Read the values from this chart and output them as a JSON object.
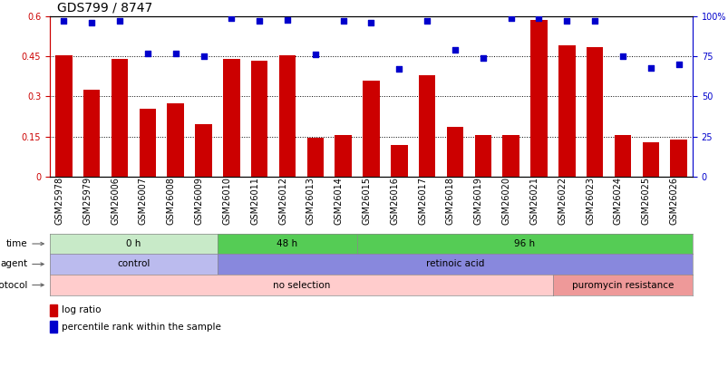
{
  "title": "GDS799 / 8747",
  "samples": [
    "GSM25978",
    "GSM25979",
    "GSM26006",
    "GSM26007",
    "GSM26008",
    "GSM26009",
    "GSM26010",
    "GSM26011",
    "GSM26012",
    "GSM26013",
    "GSM26014",
    "GSM26015",
    "GSM26016",
    "GSM26017",
    "GSM26018",
    "GSM26019",
    "GSM26020",
    "GSM26021",
    "GSM26022",
    "GSM26023",
    "GSM26024",
    "GSM26025",
    "GSM26026"
  ],
  "log_ratio": [
    0.455,
    0.325,
    0.44,
    0.255,
    0.275,
    0.195,
    0.44,
    0.435,
    0.455,
    0.145,
    0.155,
    0.36,
    0.12,
    0.38,
    0.185,
    0.155,
    0.155,
    0.585,
    0.49,
    0.485,
    0.155,
    0.13,
    0.14
  ],
  "percentile": [
    97,
    96,
    97,
    77,
    77,
    75,
    99,
    97,
    98,
    76,
    97,
    96,
    67,
    97,
    79,
    74,
    99,
    99,
    97,
    97,
    75,
    68,
    70
  ],
  "bar_color": "#cc0000",
  "dot_color": "#0000cc",
  "ylim_left": [
    0,
    0.6
  ],
  "ylim_right": [
    0,
    100
  ],
  "yticks_left": [
    0,
    0.15,
    0.3,
    0.45,
    0.6
  ],
  "yticks_left_labels": [
    "0",
    "0.15",
    "0.3",
    "0.45",
    "0.6"
  ],
  "yticks_right": [
    0,
    25,
    50,
    75,
    100
  ],
  "yticks_right_labels": [
    "0",
    "25",
    "50",
    "75",
    "100%"
  ],
  "hlines": [
    0.15,
    0.3,
    0.45
  ],
  "time_groups": [
    {
      "label": "0 h",
      "start": 0,
      "end": 5,
      "color": "#c8eac8"
    },
    {
      "label": "48 h",
      "start": 6,
      "end": 10,
      "color": "#55cc55"
    },
    {
      "label": "96 h",
      "start": 11,
      "end": 22,
      "color": "#55cc55"
    }
  ],
  "agent_groups": [
    {
      "label": "control",
      "start": 0,
      "end": 5,
      "color": "#bbbbee"
    },
    {
      "label": "retinoic acid",
      "start": 6,
      "end": 22,
      "color": "#8888dd"
    }
  ],
  "growth_groups": [
    {
      "label": "no selection",
      "start": 0,
      "end": 17,
      "color": "#ffcccc"
    },
    {
      "label": "puromycin resistance",
      "start": 18,
      "end": 22,
      "color": "#ee9999"
    }
  ],
  "legend_bar_color": "#cc0000",
  "legend_dot_color": "#0000cc",
  "fig_bg": "#ffffff",
  "axis_color_left": "#cc0000",
  "axis_color_right": "#0000cc",
  "title_fontsize": 10,
  "tick_fontsize": 7,
  "bar_width": 0.6
}
